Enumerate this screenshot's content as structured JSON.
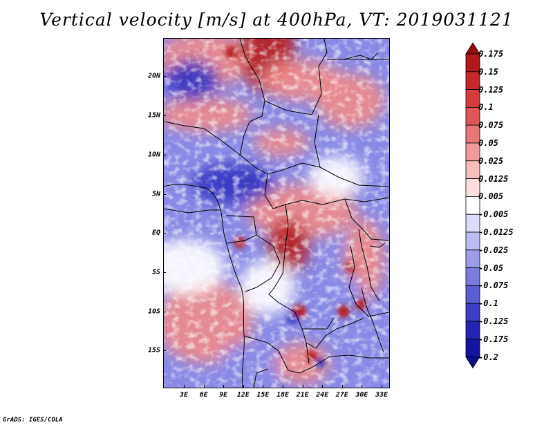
{
  "title": "Vertical velocity [m/s] at 400hPa, VT: 2019031121",
  "credit": "GrADS: IGES/COLA",
  "axes": {
    "lat_labels": [
      "20N",
      "15N",
      "10N",
      "5N",
      "EQ",
      "5S",
      "10S",
      "15S"
    ],
    "lon_labels": [
      "3E",
      "6E",
      "9E",
      "12E",
      "15E",
      "18E",
      "21E",
      "24E",
      "27E",
      "30E",
      "33E"
    ]
  },
  "colorbar": {
    "labels": [
      "0.175",
      "0.15",
      "0.125",
      "0.1",
      "0.075",
      "0.05",
      "0.025",
      "0.0125",
      "0.005",
      "-0.005",
      "-0.0125",
      "-0.025",
      "-0.05",
      "-0.075",
      "-0.1",
      "-0.125",
      "-0.175",
      "-0.2"
    ],
    "colors": [
      "#9e0a0a",
      "#b11818",
      "#c42a2a",
      "#d43c3c",
      "#e05656",
      "#ea7676",
      "#f29a9a",
      "#f8bebe",
      "#fcdede",
      "#ffffff",
      "#dcdcf8",
      "#bcbcf2",
      "#9c9cea",
      "#7c7ce0",
      "#5c5cd4",
      "#3c3cc6",
      "#2424b4",
      "#1414a0",
      "#0a0a8c"
    ]
  },
  "field_colors": {
    "strong_positive": "#b81c1c",
    "positive": "#ee8a8a",
    "neutral": "#ffffff",
    "negative": "#8a8ae6",
    "strong_negative": "#3434c0"
  }
}
